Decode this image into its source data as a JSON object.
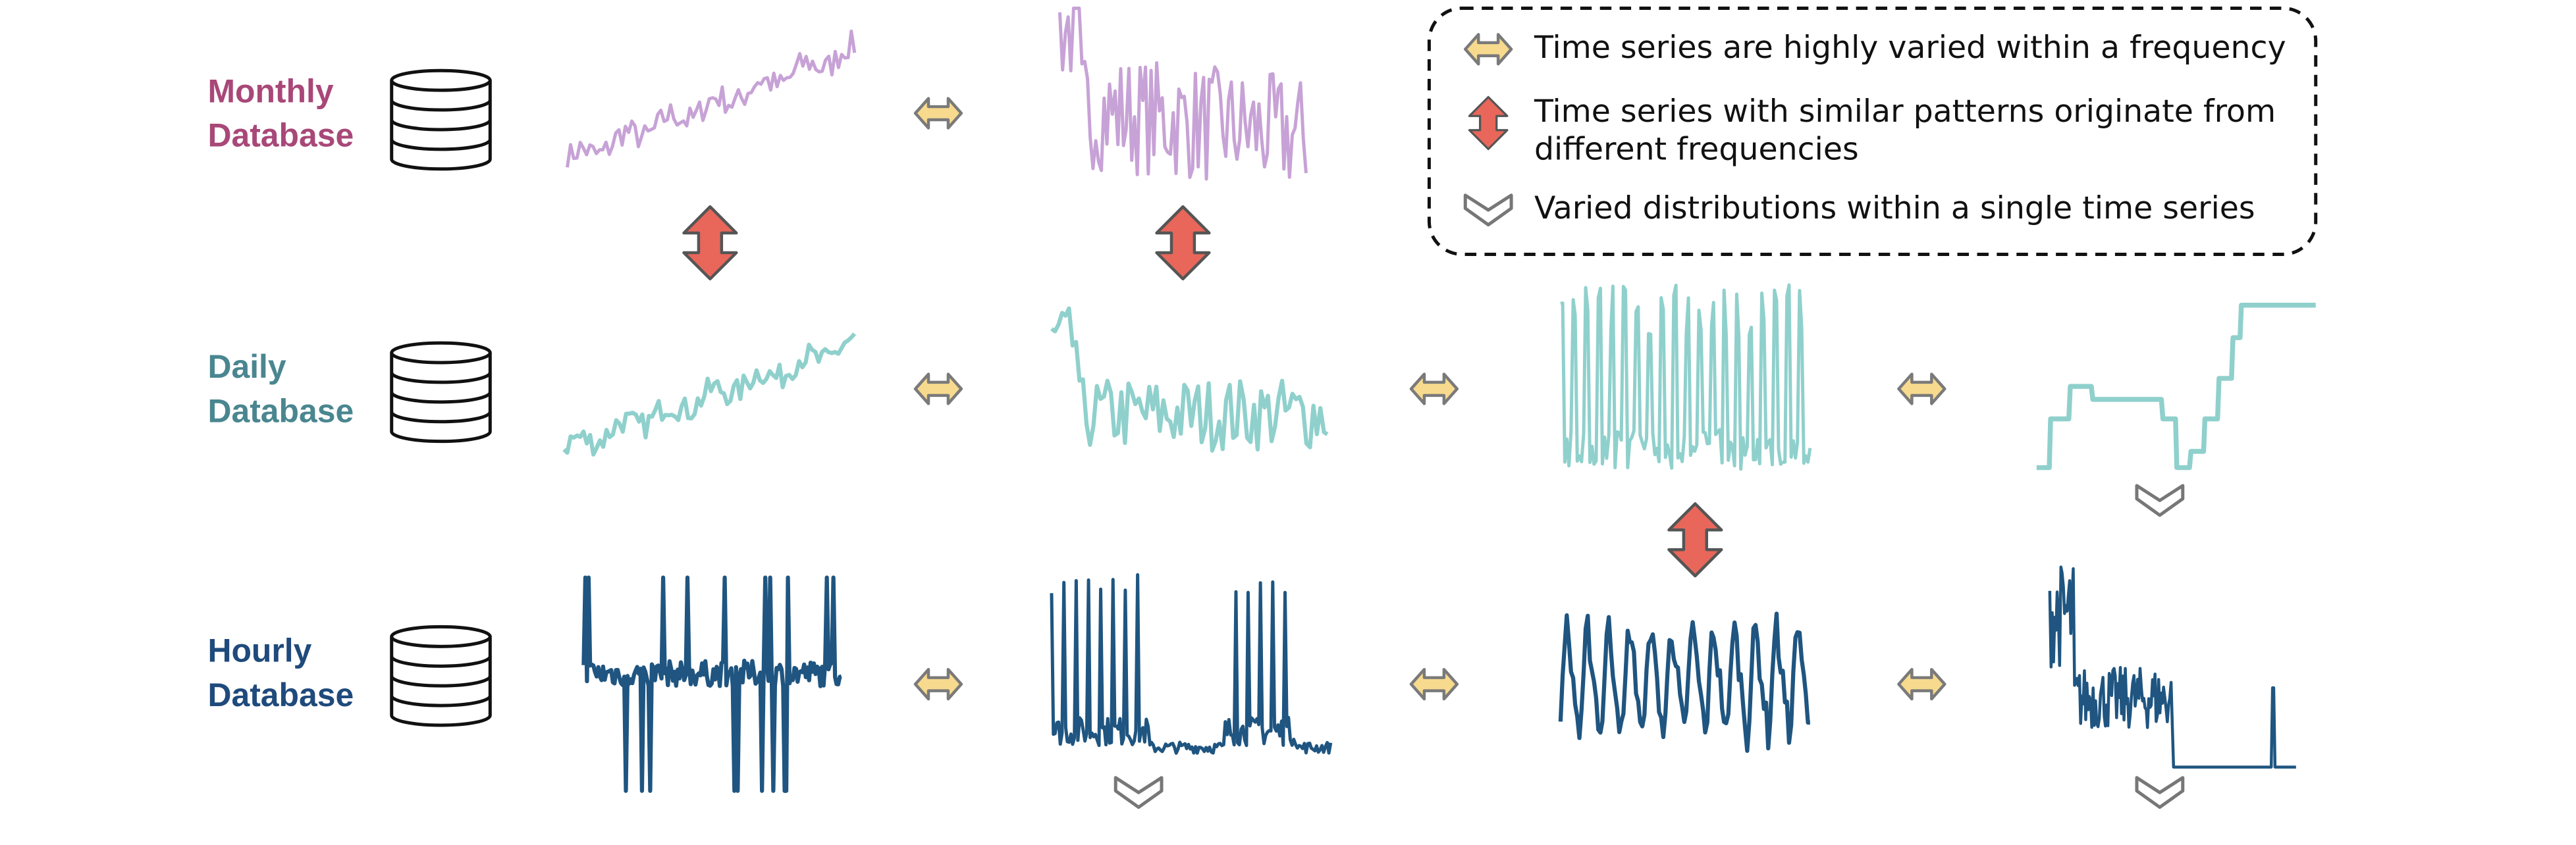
{
  "rows": [
    {
      "label": [
        "Monthly",
        "Database"
      ]
    },
    {
      "label": [
        "Daily",
        "Database"
      ]
    },
    {
      "label": [
        "Hourly",
        "Database"
      ]
    }
  ],
  "legend": [
    {
      "text": [
        "Time series are highly varied within a frequency"
      ]
    },
    {
      "text": [
        "Time series with similar patterns originate from",
        "different frequencies"
      ]
    },
    {
      "text": [
        "Varied distributions within a single time series"
      ]
    }
  ]
}
